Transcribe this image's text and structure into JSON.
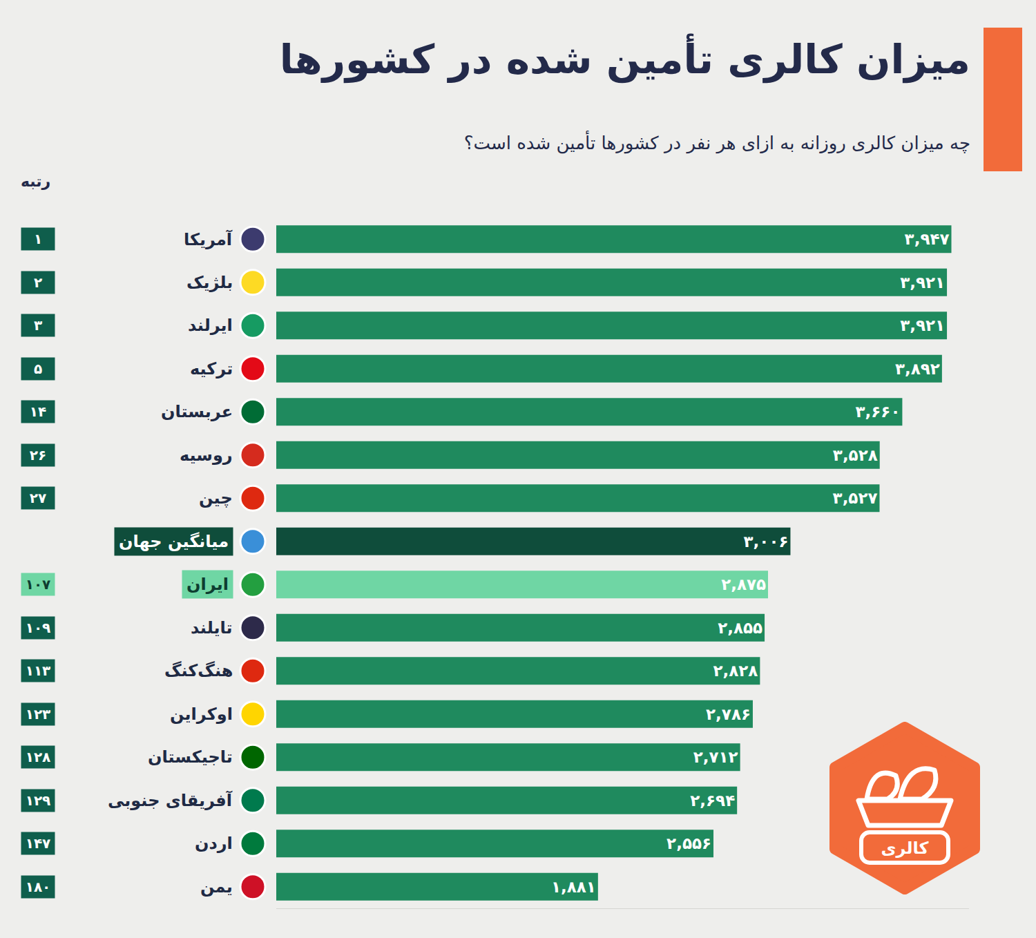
{
  "chart_data": {
    "type": "bar",
    "orientation": "horizontal",
    "title": "میزان کالری تأمین شده در کشورها",
    "subtitle": "چه میزان کالری روزانه به ازای هر نفر در کشورها تأمین شده است؟",
    "rank_header": "رتبه",
    "badge": "کالری",
    "categories": [
      "آمریکا",
      "بلژیک",
      "ایرلند",
      "ترکیه",
      "عربستان",
      "روسیه",
      "چین",
      "میانگین جهان",
      "ایران",
      "تایلند",
      "هنگ‌کنگ",
      "اوکراین",
      "تاجیکستان",
      "آفریقای جنوبی",
      "اردن",
      "یمن"
    ],
    "rank_labels": [
      "۱",
      "۲",
      "۳",
      "۵",
      "۱۴",
      "۲۶",
      "۲۷",
      null,
      "۱۰۷",
      "۱۰۹",
      "۱۱۳",
      "۱۲۳",
      "۱۲۸",
      "۱۲۹",
      "۱۴۷",
      "۱۸۰"
    ],
    "values": [
      3947,
      3921,
      3921,
      3892,
      3660,
      3528,
      3527,
      3006,
      2875,
      2855,
      2828,
      2786,
      2712,
      2694,
      2556,
      1881
    ],
    "value_labels": [
      "۳,۹۴۷",
      "۳,۹۲۱",
      "۳,۹۲۱",
      "۳,۸۹۲",
      "۳,۶۶۰",
      "۳,۵۲۸",
      "۳,۵۲۷",
      "۳,۰۰۶",
      "۲,۸۷۵",
      "۲,۸۵۵",
      "۲,۸۲۸",
      "۲,۷۸۶",
      "۲,۷۱۲",
      "۲,۶۹۴",
      "۲,۵۵۶",
      "۱,۸۸۱"
    ],
    "colors": [
      "#1f8a5e",
      "#1f8a5e",
      "#1f8a5e",
      "#1f8a5e",
      "#1f8a5e",
      "#1f8a5e",
      "#1f8a5e",
      "#0f4d3b",
      "#6fd6a4",
      "#1f8a5e",
      "#1f8a5e",
      "#1f8a5e",
      "#1f8a5e",
      "#1f8a5e",
      "#1f8a5e",
      "#1f8a5e"
    ],
    "xlim": [
      0,
      4050
    ],
    "tick_labels": false,
    "data_labels": true,
    "grid": false
  }
}
